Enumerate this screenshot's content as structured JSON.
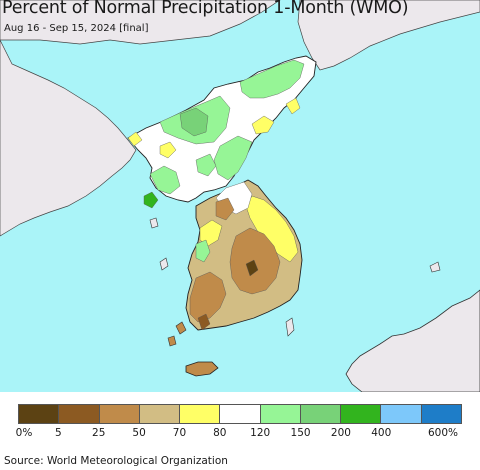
{
  "title": "Percent of Normal Precipitation 1-Month (WMO)",
  "subtitle": "Aug 16 - Sep 15, 2024 [final]",
  "source": "Source: World Meteorological Organization",
  "legend": {
    "colors": [
      "#5c4213",
      "#8c5a22",
      "#c08b4a",
      "#d2bd84",
      "#ffff66",
      "#ffffff",
      "#96f596",
      "#78d278",
      "#32b41e",
      "#7dc8fa",
      "#1e7dc8"
    ],
    "labels": [
      "0%",
      "5",
      "25",
      "50",
      "70",
      "80",
      "120",
      "150",
      "200",
      "400",
      "600%"
    ]
  },
  "map_colors": {
    "ocean": "#aaf4f8",
    "land_other": "#ece8ec",
    "land_outline": "#222222"
  }
}
